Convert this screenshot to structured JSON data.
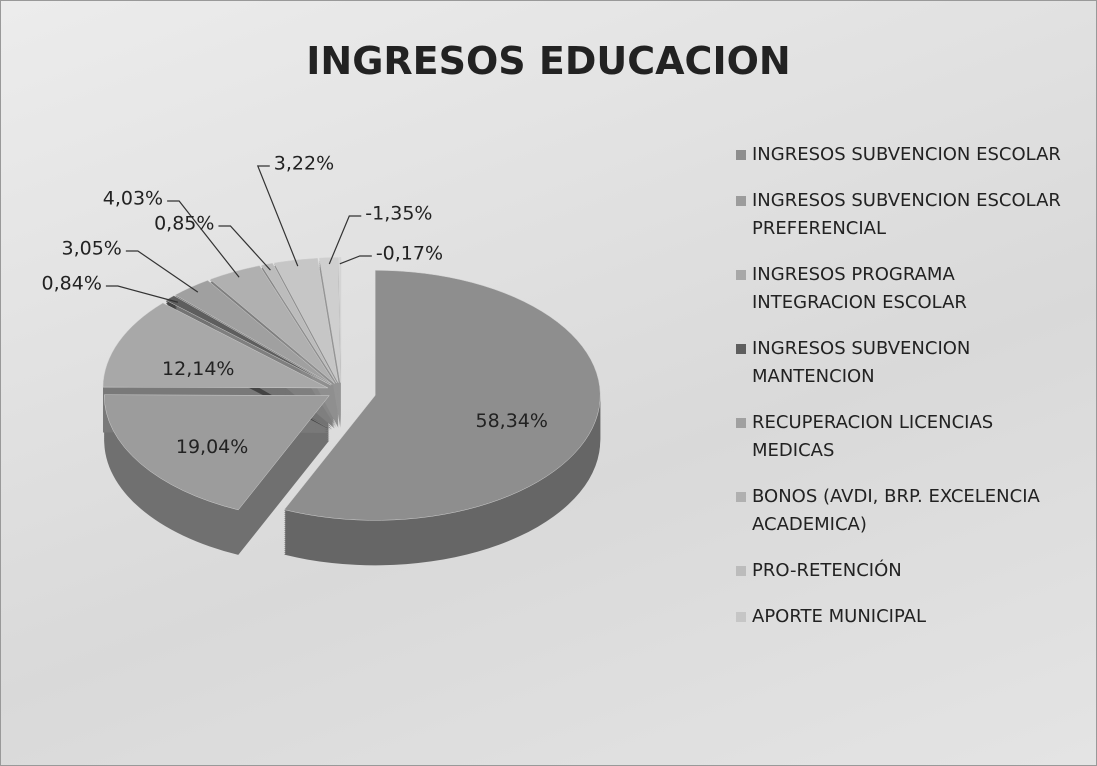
{
  "chart_data": {
    "type": "pie",
    "title": "INGRESOS EDUCACION",
    "categories": [
      "INGRESOS SUBVENCION ESCOLAR",
      "INGRESOS SUBVENCION ESCOLAR PREFERENCIAL",
      "INGRESOS PROGRAMA INTEGRACION ESCOLAR",
      "INGRESOS SUBVENCION MANTENCION",
      "RECUPERACION LICENCIAS MEDICAS",
      "BONOS (AVDI, BRP. EXCELENCIA ACADEMICA)",
      "PRO-RETENCIÓN",
      "APORTE MUNICIPAL",
      null,
      null
    ],
    "values": [
      58.34,
      19.04,
      12.14,
      0.84,
      3.05,
      4.03,
      0.85,
      3.22,
      -1.35,
      -0.17
    ],
    "value_labels": [
      "58,34%",
      "19,04%",
      "12,14%",
      "0,84%",
      "3,05%",
      "4,03%",
      "0,85%",
      "3,22%",
      "-1,35%",
      "-0,17%"
    ],
    "colors": [
      "#8e8e8e",
      "#9c9c9c",
      "#a8a8a8",
      "#5e5e5e",
      "#a0a0a0",
      "#b0b0b0",
      "#bcbcbc",
      "#c6c6c6",
      "#cfcfcf",
      "#d8d8d8"
    ],
    "legend": "right"
  }
}
